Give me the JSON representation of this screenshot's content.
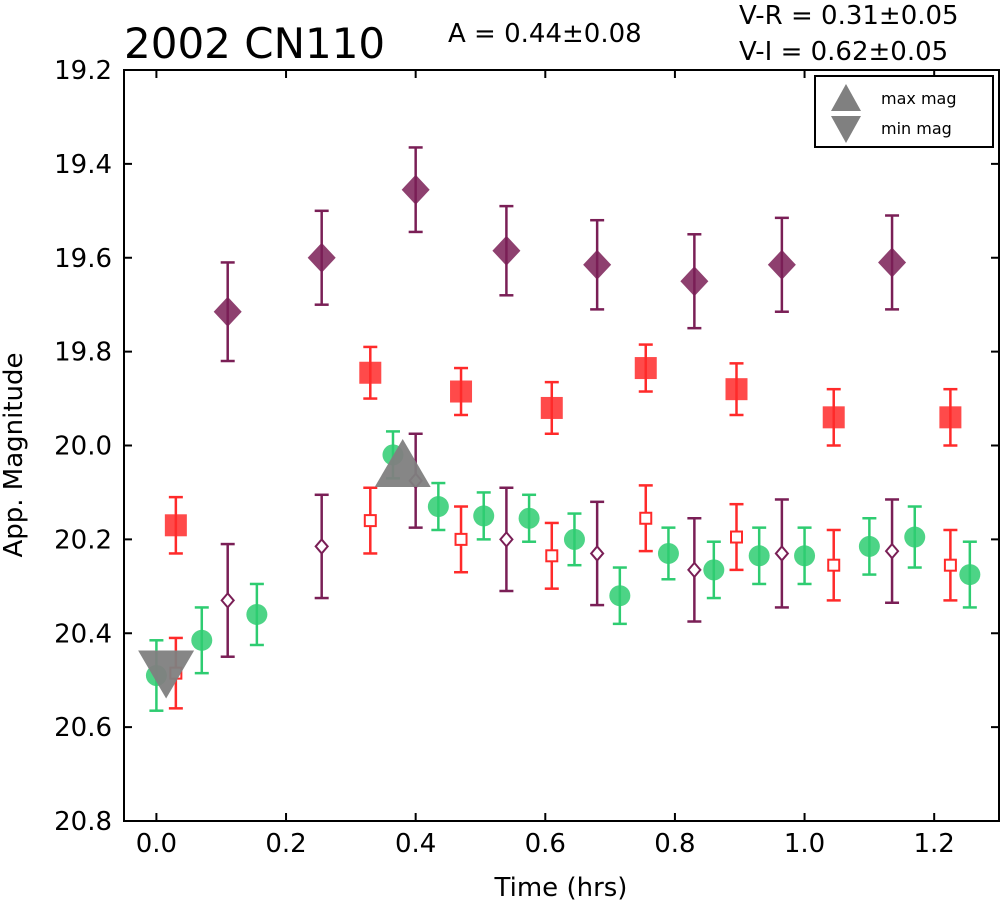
{
  "chart_data": {
    "type": "scatter",
    "title": "2002 CN110",
    "annotations": {
      "amplitude": "A  = 0.44±0.08",
      "v_r": "V-R = 0.31±0.05",
      "v_i": "V-I  = 0.62±0.05"
    },
    "xlabel": "Time (hrs)",
    "ylabel": "App. Magnitude",
    "xlim": [
      -0.05,
      1.3
    ],
    "ylim": [
      20.8,
      19.2
    ],
    "y_inverted": true,
    "xticks": [
      "0.0",
      "0.2",
      "0.4",
      "0.6",
      "0.8",
      "1.0",
      "1.2"
    ],
    "yticks": [
      "19.2",
      "19.4",
      "19.6",
      "19.8",
      "20.0",
      "20.2",
      "20.4",
      "20.6",
      "20.8"
    ],
    "grid": false,
    "legend_position": "top-right",
    "legend": [
      {
        "label": "max mag",
        "marker": "triangle-up",
        "color": "#808080"
      },
      {
        "label": "min mag",
        "marker": "triangle-down",
        "color": "#808080"
      }
    ],
    "series": [
      {
        "marker": "diamond-filled",
        "color": "#7a1f56",
        "x": [
          0.11,
          0.255,
          0.4,
          0.54,
          0.68,
          0.83,
          0.965,
          1.135
        ],
        "y": [
          19.715,
          19.6,
          19.455,
          19.585,
          19.615,
          19.65,
          19.615,
          19.61
        ],
        "err": [
          0.105,
          0.1,
          0.09,
          0.095,
          0.095,
          0.1,
          0.1,
          0.1
        ]
      },
      {
        "marker": "square-filled",
        "color": "#ff2a2a",
        "x": [
          0.03,
          0.33,
          0.47,
          0.61,
          0.755,
          0.895,
          1.045,
          1.225
        ],
        "y": [
          20.17,
          19.845,
          19.885,
          19.92,
          19.835,
          19.88,
          19.94,
          19.94
        ],
        "err": [
          0.06,
          0.055,
          0.05,
          0.055,
          0.05,
          0.055,
          0.06,
          0.06
        ]
      },
      {
        "marker": "circle-filled",
        "color": "#2ecc71",
        "x": [
          0.0,
          0.07,
          0.155,
          0.365,
          0.435,
          0.505,
          0.575,
          0.645,
          0.715,
          0.79,
          0.86,
          0.93,
          1.0,
          1.1,
          1.17,
          1.255
        ],
        "y": [
          20.49,
          20.415,
          20.36,
          20.02,
          20.13,
          20.15,
          20.155,
          20.2,
          20.32,
          20.23,
          20.265,
          20.235,
          20.235,
          20.215,
          20.195,
          20.275
        ],
        "err": [
          0.075,
          0.07,
          0.065,
          0.05,
          0.05,
          0.05,
          0.05,
          0.055,
          0.06,
          0.055,
          0.06,
          0.06,
          0.06,
          0.06,
          0.065,
          0.07
        ]
      },
      {
        "marker": "square-open",
        "color": "#ff2a2a",
        "x": [
          0.03,
          0.33,
          0.47,
          0.61,
          0.755,
          0.895,
          1.045,
          1.225
        ],
        "y": [
          20.485,
          20.16,
          20.2,
          20.235,
          20.155,
          20.195,
          20.255,
          20.255
        ],
        "err": [
          0.075,
          0.07,
          0.07,
          0.07,
          0.07,
          0.07,
          0.075,
          0.075
        ]
      },
      {
        "marker": "diamond-open",
        "color": "#7a1f56",
        "x": [
          0.11,
          0.255,
          0.4,
          0.54,
          0.68,
          0.83,
          0.965,
          1.135
        ],
        "y": [
          20.33,
          20.215,
          20.075,
          20.2,
          20.23,
          20.265,
          20.23,
          20.225
        ],
        "err": [
          0.12,
          0.11,
          0.1,
          0.11,
          0.11,
          0.11,
          0.115,
          0.11
        ]
      },
      {
        "marker": "triangle-up-large",
        "color": "#808080",
        "x": [
          0.38
        ],
        "y": [
          20.05
        ],
        "err": [
          0
        ]
      },
      {
        "marker": "triangle-down-large",
        "color": "#808080",
        "x": [
          0.015
        ],
        "y": [
          20.475
        ],
        "err": [
          0
        ]
      }
    ]
  }
}
